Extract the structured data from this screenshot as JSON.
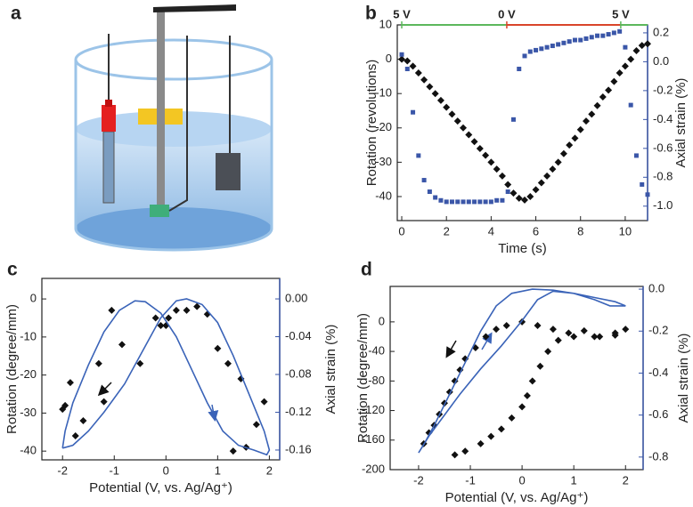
{
  "illustration": {
    "label": "a"
  },
  "chart_data": [
    {
      "label": "b",
      "type": "scatter",
      "xlabel": "Time (s)",
      "ylabel": "Rotation (revolutions)",
      "y2label": "Axial strain (%)",
      "y2color": "#3a56a8",
      "xlim": [
        -0.2,
        11
      ],
      "ylim": [
        -47,
        10
      ],
      "y2lim": [
        -1.1,
        0.255
      ],
      "xticks": [
        0,
        2,
        4,
        6,
        8,
        10
      ],
      "yticks": [
        10,
        0,
        -10,
        -20,
        -30,
        -40
      ],
      "y2ticks": [
        0.2,
        {
          "value": 0,
          "label": "0.0"
        },
        -0.2,
        -0.4,
        -0.6,
        -0.8,
        {
          "value": -1,
          "label": "-1.0"
        }
      ],
      "segments": [
        {
          "label": "5 V",
          "start": 0,
          "end": 4.7,
          "color": "#5cb85c"
        },
        {
          "label": "0 V",
          "start": 4.7,
          "end": 9.8,
          "color": "#d9452a"
        },
        {
          "label": "5 V",
          "start": 9.8,
          "end": 11,
          "color": "#5cb85c"
        }
      ],
      "series": [
        {
          "kind": "markers",
          "marker": "diamond",
          "color": "#111111",
          "axis": "y",
          "x": [
            0,
            0.25,
            0.5,
            0.75,
            1,
            1.25,
            1.5,
            1.75,
            2,
            2.25,
            2.5,
            2.75,
            3,
            3.25,
            3.5,
            3.75,
            4,
            4.25,
            4.5,
            4.75,
            5,
            5.25,
            5.5,
            5.75,
            6,
            6.25,
            6.5,
            6.75,
            7,
            7.25,
            7.5,
            7.75,
            8,
            8.25,
            8.5,
            8.75,
            9,
            9.25,
            9.5,
            9.75,
            10,
            10.25,
            10.5,
            10.75,
            11
          ],
          "values": [
            0,
            -0.5,
            -2,
            -4,
            -6,
            -8,
            -10,
            -12,
            -14,
            -16,
            -18,
            -20,
            -22,
            -24,
            -26,
            -28,
            -30,
            -32,
            -34,
            -36.5,
            -39,
            -40.5,
            -41,
            -40,
            -38,
            -36,
            -34,
            -32,
            -30,
            -27.5,
            -25,
            -23,
            -20.5,
            -18,
            -16,
            -13.5,
            -11,
            -9,
            -6.5,
            -4,
            -2,
            0,
            2.5,
            4,
            4.5
          ]
        },
        {
          "kind": "markers",
          "marker": "square",
          "color": "#3a56a8",
          "axis": "y2",
          "x": [
            0,
            0.25,
            0.5,
            0.75,
            1,
            1.25,
            1.5,
            1.75,
            2,
            2.25,
            2.5,
            2.75,
            3,
            3.25,
            3.5,
            3.75,
            4,
            4.25,
            4.5,
            4.75,
            5,
            5.25,
            5.5,
            5.75,
            6,
            6.25,
            6.5,
            6.75,
            7,
            7.25,
            7.5,
            7.75,
            8,
            8.25,
            8.5,
            8.75,
            9,
            9.25,
            9.5,
            9.75,
            10,
            10.25,
            10.5,
            10.75,
            11
          ],
          "values": [
            0.05,
            -0.05,
            -0.35,
            -0.65,
            -0.82,
            -0.9,
            -0.94,
            -0.96,
            -0.97,
            -0.97,
            -0.97,
            -0.97,
            -0.97,
            -0.97,
            -0.97,
            -0.97,
            -0.97,
            -0.96,
            -0.96,
            -0.9,
            -0.4,
            -0.05,
            0.04,
            0.07,
            0.08,
            0.09,
            0.1,
            0.11,
            0.12,
            0.13,
            0.14,
            0.15,
            0.15,
            0.16,
            0.17,
            0.18,
            0.18,
            0.19,
            0.2,
            0.21,
            0.1,
            -0.3,
            -0.65,
            -0.85,
            -0.92
          ]
        }
      ]
    },
    {
      "label": "c",
      "type": "scatter",
      "xlabel": "Potential (V, vs. Ag/Ag⁺)",
      "ylabel": "Rotation (degree/mm)",
      "y2label": "Axial strain (%)",
      "y2color": "#3a56a8",
      "xlim": [
        -2.4,
        2.2
      ],
      "ylim": [
        -42.3,
        5.4
      ],
      "y2lim": [
        -0.1704,
        0.0217
      ],
      "xticks": [
        -2,
        -1,
        0,
        1,
        2
      ],
      "yticks": [
        0,
        -10,
        -20,
        -30,
        -40
      ],
      "y2ticks": [
        {
          "value": 0,
          "label": "0.00"
        },
        {
          "value": -0.04,
          "label": "-0.04"
        },
        {
          "value": -0.08,
          "label": "-0.08"
        },
        {
          "value": -0.12,
          "label": "-0.12"
        },
        {
          "value": -0.16,
          "label": "-0.16"
        }
      ],
      "series": [
        {
          "kind": "markers",
          "marker": "diamond",
          "color": "#111111",
          "axis": "y",
          "x": [
            -2,
            -1.95,
            -1.85,
            -1.75,
            -1.6,
            -1.3,
            -1.2,
            -1.05,
            -0.85,
            -0.5,
            -0.2,
            -0.1,
            0,
            0.05,
            0.2,
            0.4,
            0.6,
            0.8,
            1,
            1.2,
            1.3,
            1.45,
            1.55,
            1.75,
            1.9
          ],
          "values": [
            -29,
            -28,
            -22,
            -36,
            -32,
            -17,
            -27,
            -3,
            -12,
            -17,
            -5,
            -7,
            -7,
            -5,
            -3,
            -3,
            -2,
            -4,
            -13,
            -17,
            -40,
            -21,
            -39,
            -33,
            -27
          ]
        },
        {
          "kind": "line",
          "color": "#3a63b8",
          "axis": "y2",
          "x": [
            -2,
            -1.95,
            -1.8,
            -1.5,
            -1.2,
            -0.9,
            -0.6,
            -0.4,
            -0.1,
            0.2,
            0.5,
            0.8,
            1.1,
            1.4,
            1.7,
            1.95,
            2,
            1.9,
            1.6,
            1.3,
            1,
            0.7,
            0.4,
            0.2,
            -0.1,
            -0.4,
            -0.8,
            -1.2,
            -1.5,
            -1.8,
            -2
          ],
          "values": [
            -0.158,
            -0.14,
            -0.11,
            -0.07,
            -0.035,
            -0.012,
            -0.002,
            -0.003,
            -0.015,
            -0.04,
            -0.075,
            -0.11,
            -0.14,
            -0.155,
            -0.16,
            -0.165,
            -0.16,
            -0.14,
            -0.1,
            -0.06,
            -0.025,
            -0.006,
            0,
            -0.002,
            -0.02,
            -0.05,
            -0.09,
            -0.12,
            -0.14,
            -0.155,
            -0.158
          ]
        }
      ]
    },
    {
      "label": "d",
      "type": "scatter",
      "xlabel": "Potential (V, vs. Ag/Ag⁺)",
      "ylabel": "Rotation (degree/mm)",
      "y2label": "Axial strain (%)",
      "y2color": "#3a56a8",
      "xlim": [
        -2.55,
        2.34
      ],
      "ylim": [
        -200,
        48
      ],
      "y2lim": [
        -0.86,
        0.013
      ],
      "xticks": [
        -2,
        -1,
        0,
        1,
        2
      ],
      "yticks": [
        0,
        -40,
        -80,
        -120,
        -160,
        -200
      ],
      "y2ticks": [
        {
          "value": 0,
          "label": "0.0"
        },
        -0.2,
        -0.4,
        -0.6,
        -0.8
      ],
      "series": [
        {
          "kind": "markers",
          "marker": "diamond",
          "color": "#111111",
          "axis": "y",
          "x": [
            -1.9,
            -1.8,
            -1.7,
            -1.6,
            -1.5,
            -1.4,
            -1.3,
            -1.2,
            -1.1,
            -0.9,
            -0.7,
            -0.5,
            -0.3,
            0,
            0.3,
            0.6,
            1,
            1.4,
            1.8,
            2,
            -1.3,
            -1.1,
            -0.8,
            -0.6,
            -0.4,
            -0.2,
            0,
            0.1,
            0.2,
            0.35,
            0.5,
            0.7,
            0.9,
            1.2,
            1.5,
            1.8
          ],
          "values": [
            -165,
            -150,
            -140,
            -125,
            -110,
            -95,
            -80,
            -65,
            -50,
            -35,
            -20,
            -10,
            -5,
            0,
            -5,
            -10,
            -20,
            -20,
            -15,
            -10,
            -180,
            -175,
            -165,
            -155,
            -145,
            -130,
            -115,
            -100,
            -80,
            -60,
            -40,
            -25,
            -15,
            -12,
            -20,
            -18
          ]
        },
        {
          "kind": "line",
          "color": "#3a63b8",
          "axis": "y2",
          "x": [
            -2,
            -1.8,
            -1.5,
            -1.2,
            -0.8,
            -0.4,
            0,
            0.3,
            0.6,
            1,
            1.4,
            1.7,
            2,
            1.8,
            1.4,
            1,
            0.6,
            0.2,
            -0.2,
            -0.5,
            -0.8,
            -1.1,
            -1.4,
            -1.7,
            -1.9,
            -2
          ],
          "values": [
            -0.78,
            -0.7,
            -0.6,
            -0.5,
            -0.38,
            -0.27,
            -0.15,
            -0.05,
            -0.01,
            -0.02,
            -0.05,
            -0.08,
            -0.08,
            -0.06,
            -0.04,
            -0.02,
            -0.005,
            0,
            -0.02,
            -0.08,
            -0.2,
            -0.35,
            -0.5,
            -0.65,
            -0.74,
            -0.78
          ]
        }
      ]
    }
  ]
}
